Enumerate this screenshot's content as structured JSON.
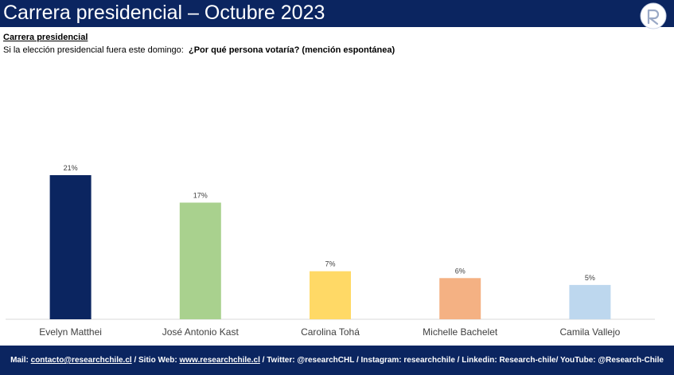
{
  "header": {
    "title": "Carrera presidencial – Octubre 2023"
  },
  "subtitle": "Carrera presidencial",
  "question": {
    "prefix": "Si la elección presidencial fuera este domingo:",
    "text": "¿Por qué persona votaría? (mención espontánea)"
  },
  "chart_data": {
    "type": "bar",
    "categories": [
      "Evelyn Matthei",
      "José Antonio Kast",
      "Carolina Tohá",
      "Michelle Bachelet",
      "Camila Vallejo"
    ],
    "values": [
      21,
      17,
      7,
      6,
      5
    ],
    "value_labels": [
      "21%",
      "17%",
      "7%",
      "6%",
      "5%"
    ],
    "colors": [
      "#0b2560",
      "#a9d18e",
      "#ffd966",
      "#f4b183",
      "#bdd7ee"
    ],
    "ylim": [
      0,
      21
    ],
    "grid": false,
    "legend": "none"
  },
  "footer": {
    "mail_label": "Mail: ",
    "mail": "contacto@researchchile.cl",
    "web_label": " / Sitio Web: ",
    "web": "www.researchchile.cl",
    "rest": " / Twitter: @researchCHL / Instagram: researchchile / Linkedin: Research-chile/ YouTube: @Research-Chile"
  },
  "colors": {
    "header_bg": "#0b2560",
    "footer_bg": "#0b2560"
  }
}
